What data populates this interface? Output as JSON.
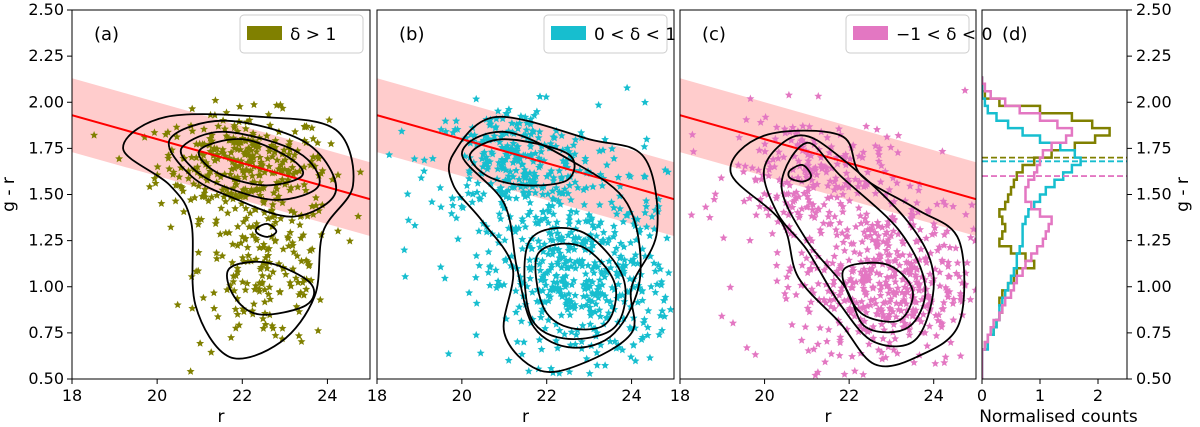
{
  "chart_data": {
    "type": "scatter",
    "shared_ylabel": "g - r",
    "ylim": [
      0.5,
      2.5
    ],
    "y_ticks": [
      "0.50",
      "0.75",
      "1.00",
      "1.25",
      "1.50",
      "1.75",
      "2.00",
      "2.25",
      "2.50"
    ],
    "red_sequence": {
      "slope": -0.065,
      "intercept": 3.1,
      "band_halfwidth": 0.2,
      "color": "#ff0000",
      "band_color": "#ffc7c7"
    },
    "panels": [
      {
        "id": "a",
        "label": "(a)",
        "legend": "δ > 1",
        "color": "#808000",
        "xlabel": "r",
        "xlim": [
          18,
          25
        ],
        "x_ticks": [
          "18",
          "20",
          "22",
          "24"
        ],
        "clusters": [
          {
            "x": 22.0,
            "y": 1.66,
            "sx": 1.0,
            "sy": 0.14,
            "n": 320
          },
          {
            "x": 22.6,
            "y": 1.1,
            "sx": 0.8,
            "sy": 0.22,
            "n": 180
          }
        ],
        "contours": [
          [
            [
              19.2,
              1.75
            ],
            [
              20.2,
              1.92
            ],
            [
              22.5,
              1.92
            ],
            [
              24.2,
              1.85
            ],
            [
              24.6,
              1.55
            ],
            [
              23.9,
              1.3
            ],
            [
              23.7,
              0.95
            ],
            [
              22.9,
              0.7
            ],
            [
              21.7,
              0.62
            ],
            [
              20.9,
              0.9
            ],
            [
              20.8,
              1.35
            ],
            [
              20.3,
              1.55
            ]
          ],
          [
            [
              20.3,
              1.8
            ],
            [
              21.6,
              1.9
            ],
            [
              23.5,
              1.78
            ],
            [
              24.2,
              1.52
            ],
            [
              23.2,
              1.38
            ],
            [
              21.8,
              1.48
            ],
            [
              20.8,
              1.6
            ]
          ],
          [
            [
              20.6,
              1.76
            ],
            [
              21.6,
              1.84
            ],
            [
              23.3,
              1.73
            ],
            [
              23.8,
              1.55
            ],
            [
              22.8,
              1.47
            ],
            [
              21.5,
              1.55
            ],
            [
              20.8,
              1.65
            ]
          ],
          [
            [
              21.0,
              1.74
            ],
            [
              22.0,
              1.8
            ],
            [
              23.1,
              1.7
            ],
            [
              23.4,
              1.6
            ],
            [
              22.5,
              1.55
            ],
            [
              21.4,
              1.62
            ]
          ],
          [
            [
              21.7,
              1.1
            ],
            [
              22.6,
              1.13
            ],
            [
              23.6,
              1.02
            ],
            [
              23.5,
              0.9
            ],
            [
              22.4,
              0.85
            ],
            [
              21.8,
              0.95
            ]
          ],
          [
            [
              22.35,
              1.32
            ],
            [
              22.6,
              1.34
            ],
            [
              22.8,
              1.3
            ],
            [
              22.6,
              1.27
            ],
            [
              22.35,
              1.29
            ]
          ]
        ],
        "hist": [
          0,
          0,
          0,
          0,
          0.05,
          0.1,
          0.2,
          0.25,
          0.3,
          0.35,
          0.3,
          0.35,
          0.45,
          0.55,
          0.6,
          0.9,
          0.75,
          0.5,
          0.3,
          0.35,
          0.4,
          0.35,
          0.3,
          0.4,
          0.45,
          0.5,
          0.55,
          0.6,
          0.7,
          0.9,
          1.2,
          1.6,
          1.95,
          2.2,
          1.9,
          1.55,
          1.0,
          0.3,
          0.05,
          0,
          0
        ],
        "hist_median": 1.7
      },
      {
        "id": "b",
        "label": "(b)",
        "legend": "0 < δ < 1",
        "color": "#17becf",
        "xlabel": "r",
        "xlim": [
          18,
          25
        ],
        "x_ticks": [
          "18",
          "20",
          "22",
          "24"
        ],
        "clusters": [
          {
            "x": 21.2,
            "y": 1.68,
            "sx": 1.0,
            "sy": 0.15,
            "n": 260
          },
          {
            "x": 22.8,
            "y": 1.02,
            "sx": 1.1,
            "sy": 0.22,
            "n": 420
          },
          {
            "x": 22.6,
            "y": 1.35,
            "sx": 1.5,
            "sy": 0.25,
            "n": 130
          }
        ],
        "contours": [
          [
            [
              19.8,
              1.72
            ],
            [
              20.8,
              1.92
            ],
            [
              23.0,
              1.8
            ],
            [
              24.3,
              1.7
            ],
            [
              24.6,
              1.3
            ],
            [
              24.0,
              1.0
            ],
            [
              24.0,
              0.75
            ],
            [
              22.8,
              0.58
            ],
            [
              21.8,
              0.55
            ],
            [
              21.0,
              0.75
            ],
            [
              21.2,
              1.1
            ],
            [
              20.5,
              1.35
            ],
            [
              19.8,
              1.55
            ]
          ],
          [
            [
              20.0,
              1.72
            ],
            [
              21.0,
              1.84
            ],
            [
              22.6,
              1.68
            ],
            [
              23.9,
              1.45
            ],
            [
              24.2,
              1.05
            ],
            [
              23.6,
              0.75
            ],
            [
              22.6,
              0.67
            ],
            [
              21.7,
              0.78
            ],
            [
              21.3,
              1.1
            ],
            [
              21.0,
              1.45
            ]
          ],
          [
            [
              21.6,
              1.25
            ],
            [
              22.8,
              1.3
            ],
            [
              23.8,
              1.05
            ],
            [
              23.6,
              0.78
            ],
            [
              22.4,
              0.72
            ],
            [
              21.6,
              0.85
            ]
          ],
          [
            [
              21.8,
              1.18
            ],
            [
              22.8,
              1.22
            ],
            [
              23.6,
              1.02
            ],
            [
              23.4,
              0.8
            ],
            [
              22.5,
              0.78
            ],
            [
              21.9,
              0.9
            ]
          ],
          [
            [
              20.2,
              1.72
            ],
            [
              21.0,
              1.8
            ],
            [
              22.5,
              1.72
            ],
            [
              22.5,
              1.58
            ],
            [
              21.5,
              1.55
            ],
            [
              20.6,
              1.6
            ]
          ]
        ],
        "hist": [
          0,
          0,
          0,
          0,
          0.1,
          0.1,
          0.2,
          0.25,
          0.3,
          0.3,
          0.35,
          0.4,
          0.45,
          0.5,
          0.55,
          0.6,
          0.6,
          0.65,
          0.7,
          0.7,
          0.7,
          0.75,
          0.8,
          0.9,
          1.0,
          1.1,
          1.25,
          1.4,
          1.55,
          1.7,
          1.6,
          1.35,
          1.0,
          0.7,
          0.45,
          0.25,
          0.1,
          0.05,
          0,
          0,
          0
        ],
        "hist_median": 1.68
      },
      {
        "id": "c",
        "label": "(c)",
        "legend": "−1 < δ < 0",
        "color": "#e377c2",
        "xlabel": "r",
        "xlim": [
          18,
          25
        ],
        "x_ticks": [
          "18",
          "20",
          "22",
          "24"
        ],
        "clusters": [
          {
            "x": 21.0,
            "y": 1.62,
            "sx": 0.9,
            "sy": 0.16,
            "n": 180
          },
          {
            "x": 22.9,
            "y": 1.0,
            "sx": 1.0,
            "sy": 0.22,
            "n": 420
          },
          {
            "x": 22.2,
            "y": 1.3,
            "sx": 1.6,
            "sy": 0.28,
            "n": 140
          }
        ],
        "contours": [
          [
            [
              19.2,
              1.62
            ],
            [
              20.0,
              1.82
            ],
            [
              21.8,
              1.82
            ],
            [
              22.3,
              1.6
            ],
            [
              23.6,
              1.42
            ],
            [
              24.6,
              1.25
            ],
            [
              24.6,
              0.8
            ],
            [
              23.6,
              0.62
            ],
            [
              22.6,
              0.58
            ],
            [
              21.8,
              0.8
            ],
            [
              20.8,
              1.05
            ],
            [
              20.4,
              1.35
            ]
          ],
          [
            [
              20.0,
              1.65
            ],
            [
              20.8,
              1.82
            ],
            [
              21.8,
              1.7
            ],
            [
              23.4,
              1.35
            ],
            [
              24.0,
              1.05
            ],
            [
              23.6,
              0.72
            ],
            [
              22.6,
              0.7
            ],
            [
              21.8,
              0.9
            ],
            [
              21.0,
              1.2
            ],
            [
              20.3,
              1.4
            ]
          ],
          [
            [
              20.4,
              1.55
            ],
            [
              21.0,
              1.78
            ],
            [
              21.8,
              1.6
            ],
            [
              23.2,
              1.3
            ],
            [
              23.8,
              1.0
            ],
            [
              23.4,
              0.78
            ],
            [
              22.4,
              0.78
            ],
            [
              21.9,
              1.0
            ],
            [
              21.0,
              1.25
            ]
          ],
          [
            [
              21.9,
              1.1
            ],
            [
              22.9,
              1.12
            ],
            [
              23.5,
              0.98
            ],
            [
              23.2,
              0.82
            ],
            [
              22.4,
              0.84
            ],
            [
              22.0,
              0.95
            ]
          ],
          [
            [
              20.6,
              1.63
            ],
            [
              20.9,
              1.66
            ],
            [
              21.1,
              1.6
            ],
            [
              20.9,
              1.57
            ],
            [
              20.6,
              1.59
            ]
          ]
        ],
        "hist": [
          0,
          0,
          0,
          0,
          0.05,
          0.1,
          0.15,
          0.2,
          0.3,
          0.35,
          0.4,
          0.5,
          0.55,
          0.6,
          0.7,
          0.75,
          0.85,
          0.95,
          1.05,
          1.1,
          1.15,
          1.2,
          1.0,
          0.85,
          0.75,
          0.75,
          0.8,
          0.9,
          0.95,
          1.0,
          1.05,
          1.2,
          1.45,
          1.55,
          1.3,
          1.0,
          0.65,
          0.4,
          0.15,
          0.05,
          0
        ],
        "hist_median": 1.6
      }
    ],
    "histogram_panel": {
      "id": "d",
      "label": "(d)",
      "xlabel": "Normalised counts",
      "xlim": [
        0,
        2.5
      ],
      "x_ticks": [
        "0",
        "1",
        "2"
      ],
      "bin_start": 0.5,
      "bin_width": 0.04
    }
  }
}
